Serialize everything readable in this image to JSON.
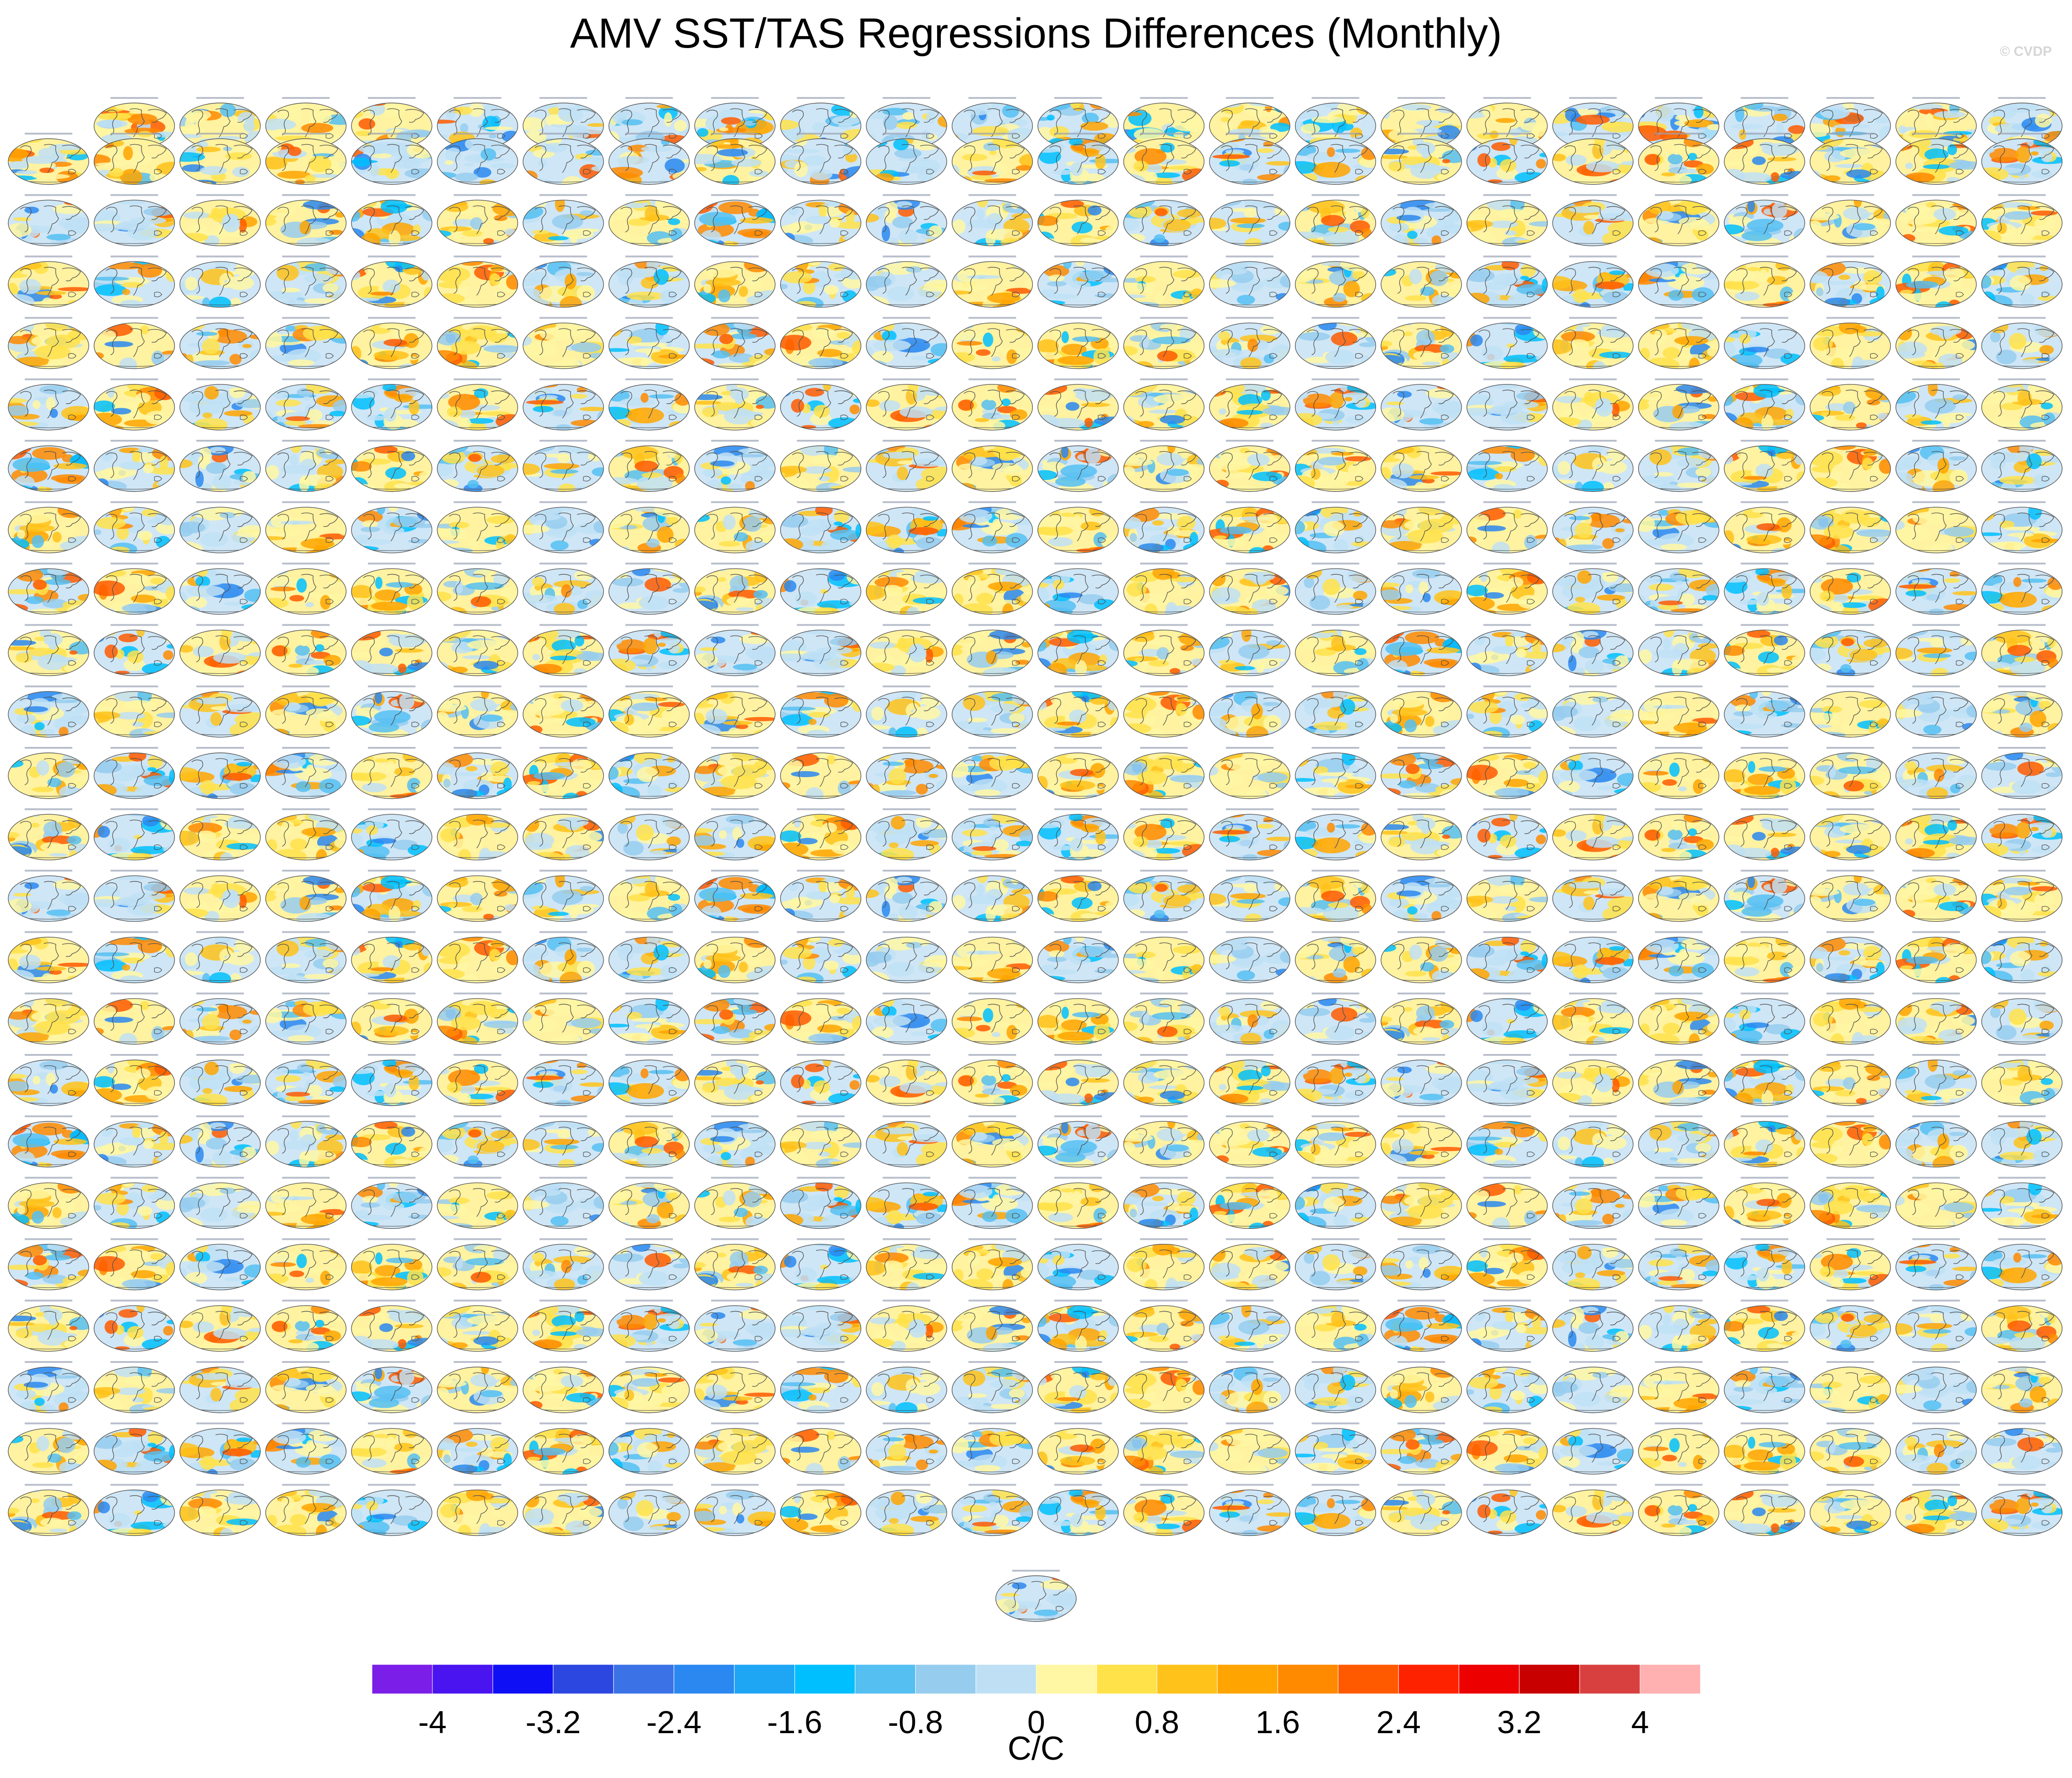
{
  "figure": {
    "title": "AMV SST/TAS Regressions Differences (Monthly)",
    "watermark": "© CVDP"
  },
  "colors": {
    "palette": [
      "#7b1ee8",
      "#4a14f0",
      "#0f0ff5",
      "#2c46e0",
      "#3b72e6",
      "#2a88f0",
      "#1ea6f5",
      "#00bfff",
      "#55bff2",
      "#96cdee",
      "#bfe0f4",
      "#fff7a3",
      "#ffe24a",
      "#ffc21a",
      "#ffa400",
      "#ff8a00",
      "#ff5a00",
      "#ff2200",
      "#ec0000",
      "#c80000",
      "#d84040",
      "#ffb0b0"
    ]
  },
  "chart_data": {
    "type": "heatmap",
    "description_type": "panel-grid of global map regressions",
    "panel_layout": {
      "rows": 24,
      "cols": 24,
      "first_row_panels": 23,
      "extra_bottom_panels": 1
    },
    "colorbar": {
      "min": -4.4,
      "max": 4.4,
      "step": 0.4,
      "tick_labels": [
        "-4",
        "-3.2",
        "-2.4",
        "-1.6",
        "-0.8",
        "0",
        "0.8",
        "1.6",
        "2.4",
        "3.2",
        "4"
      ],
      "tick_values": [
        -4,
        -3.2,
        -2.4,
        -1.6,
        -0.8,
        0,
        0.8,
        1.6,
        2.4,
        3.2,
        4
      ],
      "unit": "C/C"
    }
  }
}
